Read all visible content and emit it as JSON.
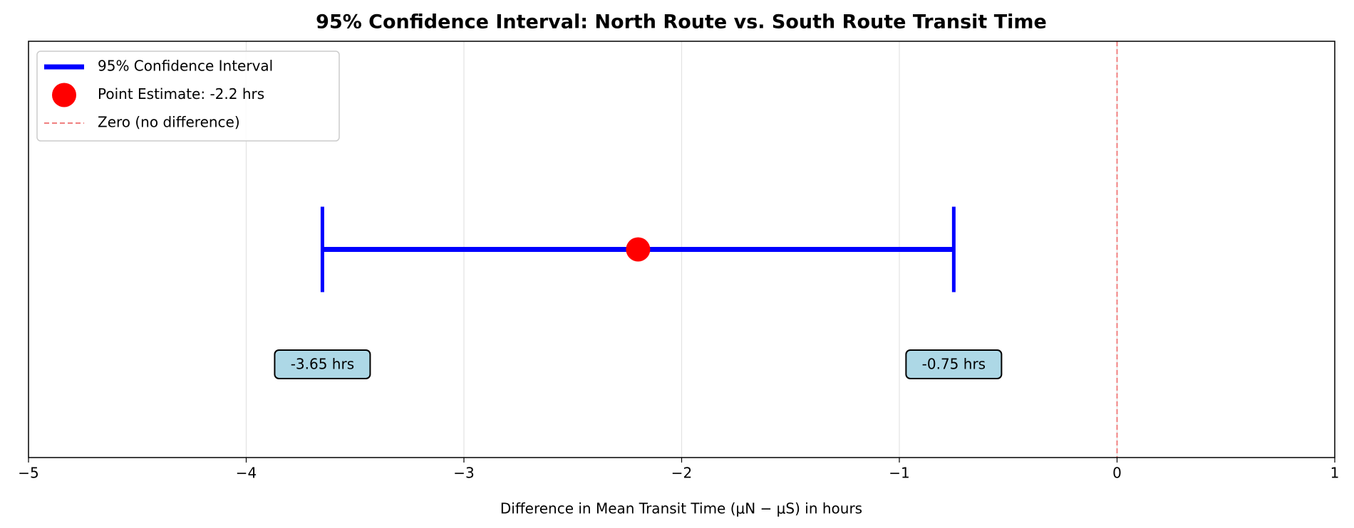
{
  "chart_data": {
    "type": "interval",
    "title": "95% Confidence Interval: North Route vs. South Route Transit Time",
    "x_label": "Difference in Mean Transit Time (μN − μS) in hours",
    "interval": {
      "lower": -3.65,
      "estimate": -2.2,
      "upper": -0.75
    },
    "value_labels": {
      "lower": "-3.65 hrs",
      "upper": "-0.75 hrs"
    },
    "reference": 0,
    "series": [
      {
        "name": "95% Confidence Interval",
        "color": "#0000ff"
      },
      {
        "name": "Point Estimate: -2.2 hrs",
        "color": "#ff0000"
      },
      {
        "name": "Zero (no difference)",
        "color": "#f08080"
      }
    ],
    "xlim": [
      -5,
      1
    ],
    "xticks": [
      {
        "value": -5,
        "label": "−5"
      },
      {
        "value": -4,
        "label": "−4"
      },
      {
        "value": -3,
        "label": "−3"
      },
      {
        "value": -2,
        "label": "−2"
      },
      {
        "value": -1,
        "label": "−1"
      },
      0,
      1
    ],
    "grid": true,
    "legend_position": "upper-left"
  }
}
